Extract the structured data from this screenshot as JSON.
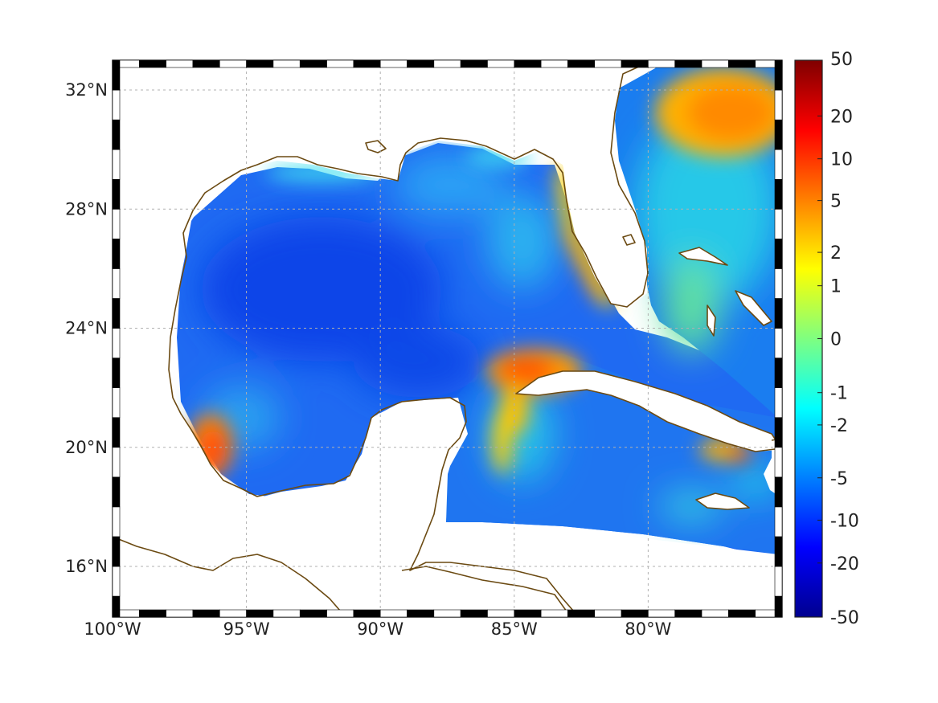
{
  "map": {
    "extent": {
      "lon_min": -100,
      "lon_max": -75,
      "lat_min": 14.3,
      "lat_max": 33
    },
    "lat_ticks": [
      {
        "value": 32,
        "label": "32°N"
      },
      {
        "value": 28,
        "label": "28°N"
      },
      {
        "value": 24,
        "label": "24°N"
      },
      {
        "value": 20,
        "label": "20°N"
      },
      {
        "value": 16,
        "label": "16°N"
      }
    ],
    "lon_ticks": [
      {
        "value": -100,
        "label": "100°W"
      },
      {
        "value": -95,
        "label": "95°W"
      },
      {
        "value": -90,
        "label": "90°W"
      },
      {
        "value": -85,
        "label": "85°W"
      },
      {
        "value": -80,
        "label": "80°W"
      }
    ],
    "grid": true,
    "coast_color": "#6b4a12",
    "land_color": "#ffffff",
    "colormap": "jet",
    "colorbar": {
      "position": "right",
      "ticks": [
        "50",
        "20",
        "10",
        "5",
        "2",
        "1",
        "0",
        "-1",
        "-2",
        "-5",
        "-10",
        "-20",
        "-50"
      ],
      "fractions": [
        0,
        0.1,
        0.177,
        0.252,
        0.345,
        0.405,
        0.5,
        0.597,
        0.655,
        0.75,
        0.826,
        0.903,
        1
      ]
    },
    "field_max_value": 10,
    "hotspots": [
      {
        "name": "north-atlantic-high",
        "value": 6
      },
      {
        "name": "cuba-northwest-high",
        "value": 5
      },
      {
        "name": "mexico-coast-high",
        "value": 6
      },
      {
        "name": "haiti-gulf-high",
        "value": 4
      },
      {
        "name": "west-florida-shelf",
        "value": 2
      },
      {
        "name": "yucatan-channel",
        "value": 2
      }
    ]
  }
}
